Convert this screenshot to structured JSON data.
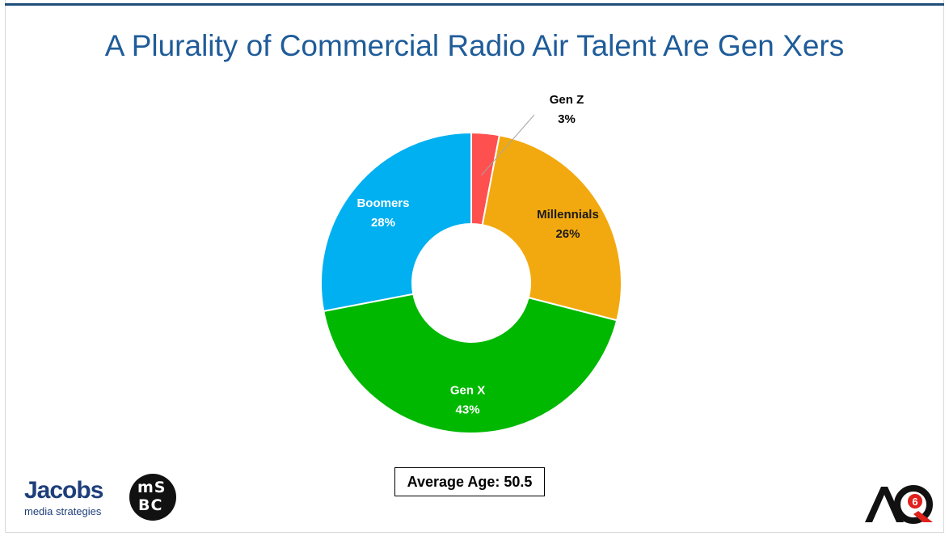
{
  "slide": {
    "title": "A Plurality of Commercial Radio Air Talent Are Gen Xers",
    "average_age": "Average Age: 50.5"
  },
  "logos": {
    "jacobs_name": "Jacobs",
    "jacobs_tagline": "media strategies",
    "msbc_top": "mS",
    "msbc_bottom": "BC",
    "aq_text": "AQ",
    "aq_badge": "6"
  },
  "chart_data": {
    "type": "donut",
    "title": "A Plurality of Commercial Radio Air Talent Are Gen Xers",
    "categories": [
      "Gen Z",
      "Millennials",
      "Gen X",
      "Boomers"
    ],
    "values": [
      3,
      26,
      43,
      28
    ],
    "labels": [
      "3%",
      "26%",
      "43%",
      "28%"
    ],
    "colors": [
      "#ff5050",
      "#f2a90f",
      "#00b800",
      "#00b0f0"
    ],
    "label_colors": [
      "#000000",
      "#1a1a1a",
      "#ffffff",
      "#ffffff"
    ],
    "legend": "none",
    "start_angle": "12 o'clock",
    "direction": "clockwise"
  }
}
